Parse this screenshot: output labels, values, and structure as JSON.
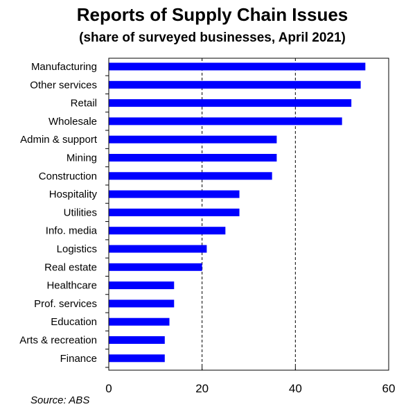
{
  "chart_data": {
    "type": "bar",
    "orientation": "horizontal",
    "title": "Reports of Supply Chain Issues",
    "subtitle": "(share of surveyed businesses, April 2021)",
    "categories": [
      "Manufacturing",
      "Other services",
      "Retail",
      "Wholesale",
      "Admin & support",
      "Mining",
      "Construction",
      "Hospitality",
      "Utilities",
      "Info. media",
      "Logistics",
      "Real estate",
      "Healthcare",
      "Prof. services",
      "Education",
      "Arts & recreation",
      "Finance"
    ],
    "values": [
      55,
      54,
      52,
      50,
      36,
      36,
      35,
      28,
      28,
      25,
      21,
      20,
      14,
      14,
      13,
      12,
      12
    ],
    "xlim": [
      0,
      60
    ],
    "xticks": [
      0,
      20,
      40,
      60
    ],
    "gridlines": [
      20,
      40
    ],
    "bar_color": "#0000ff",
    "source": "Source: ABS"
  }
}
